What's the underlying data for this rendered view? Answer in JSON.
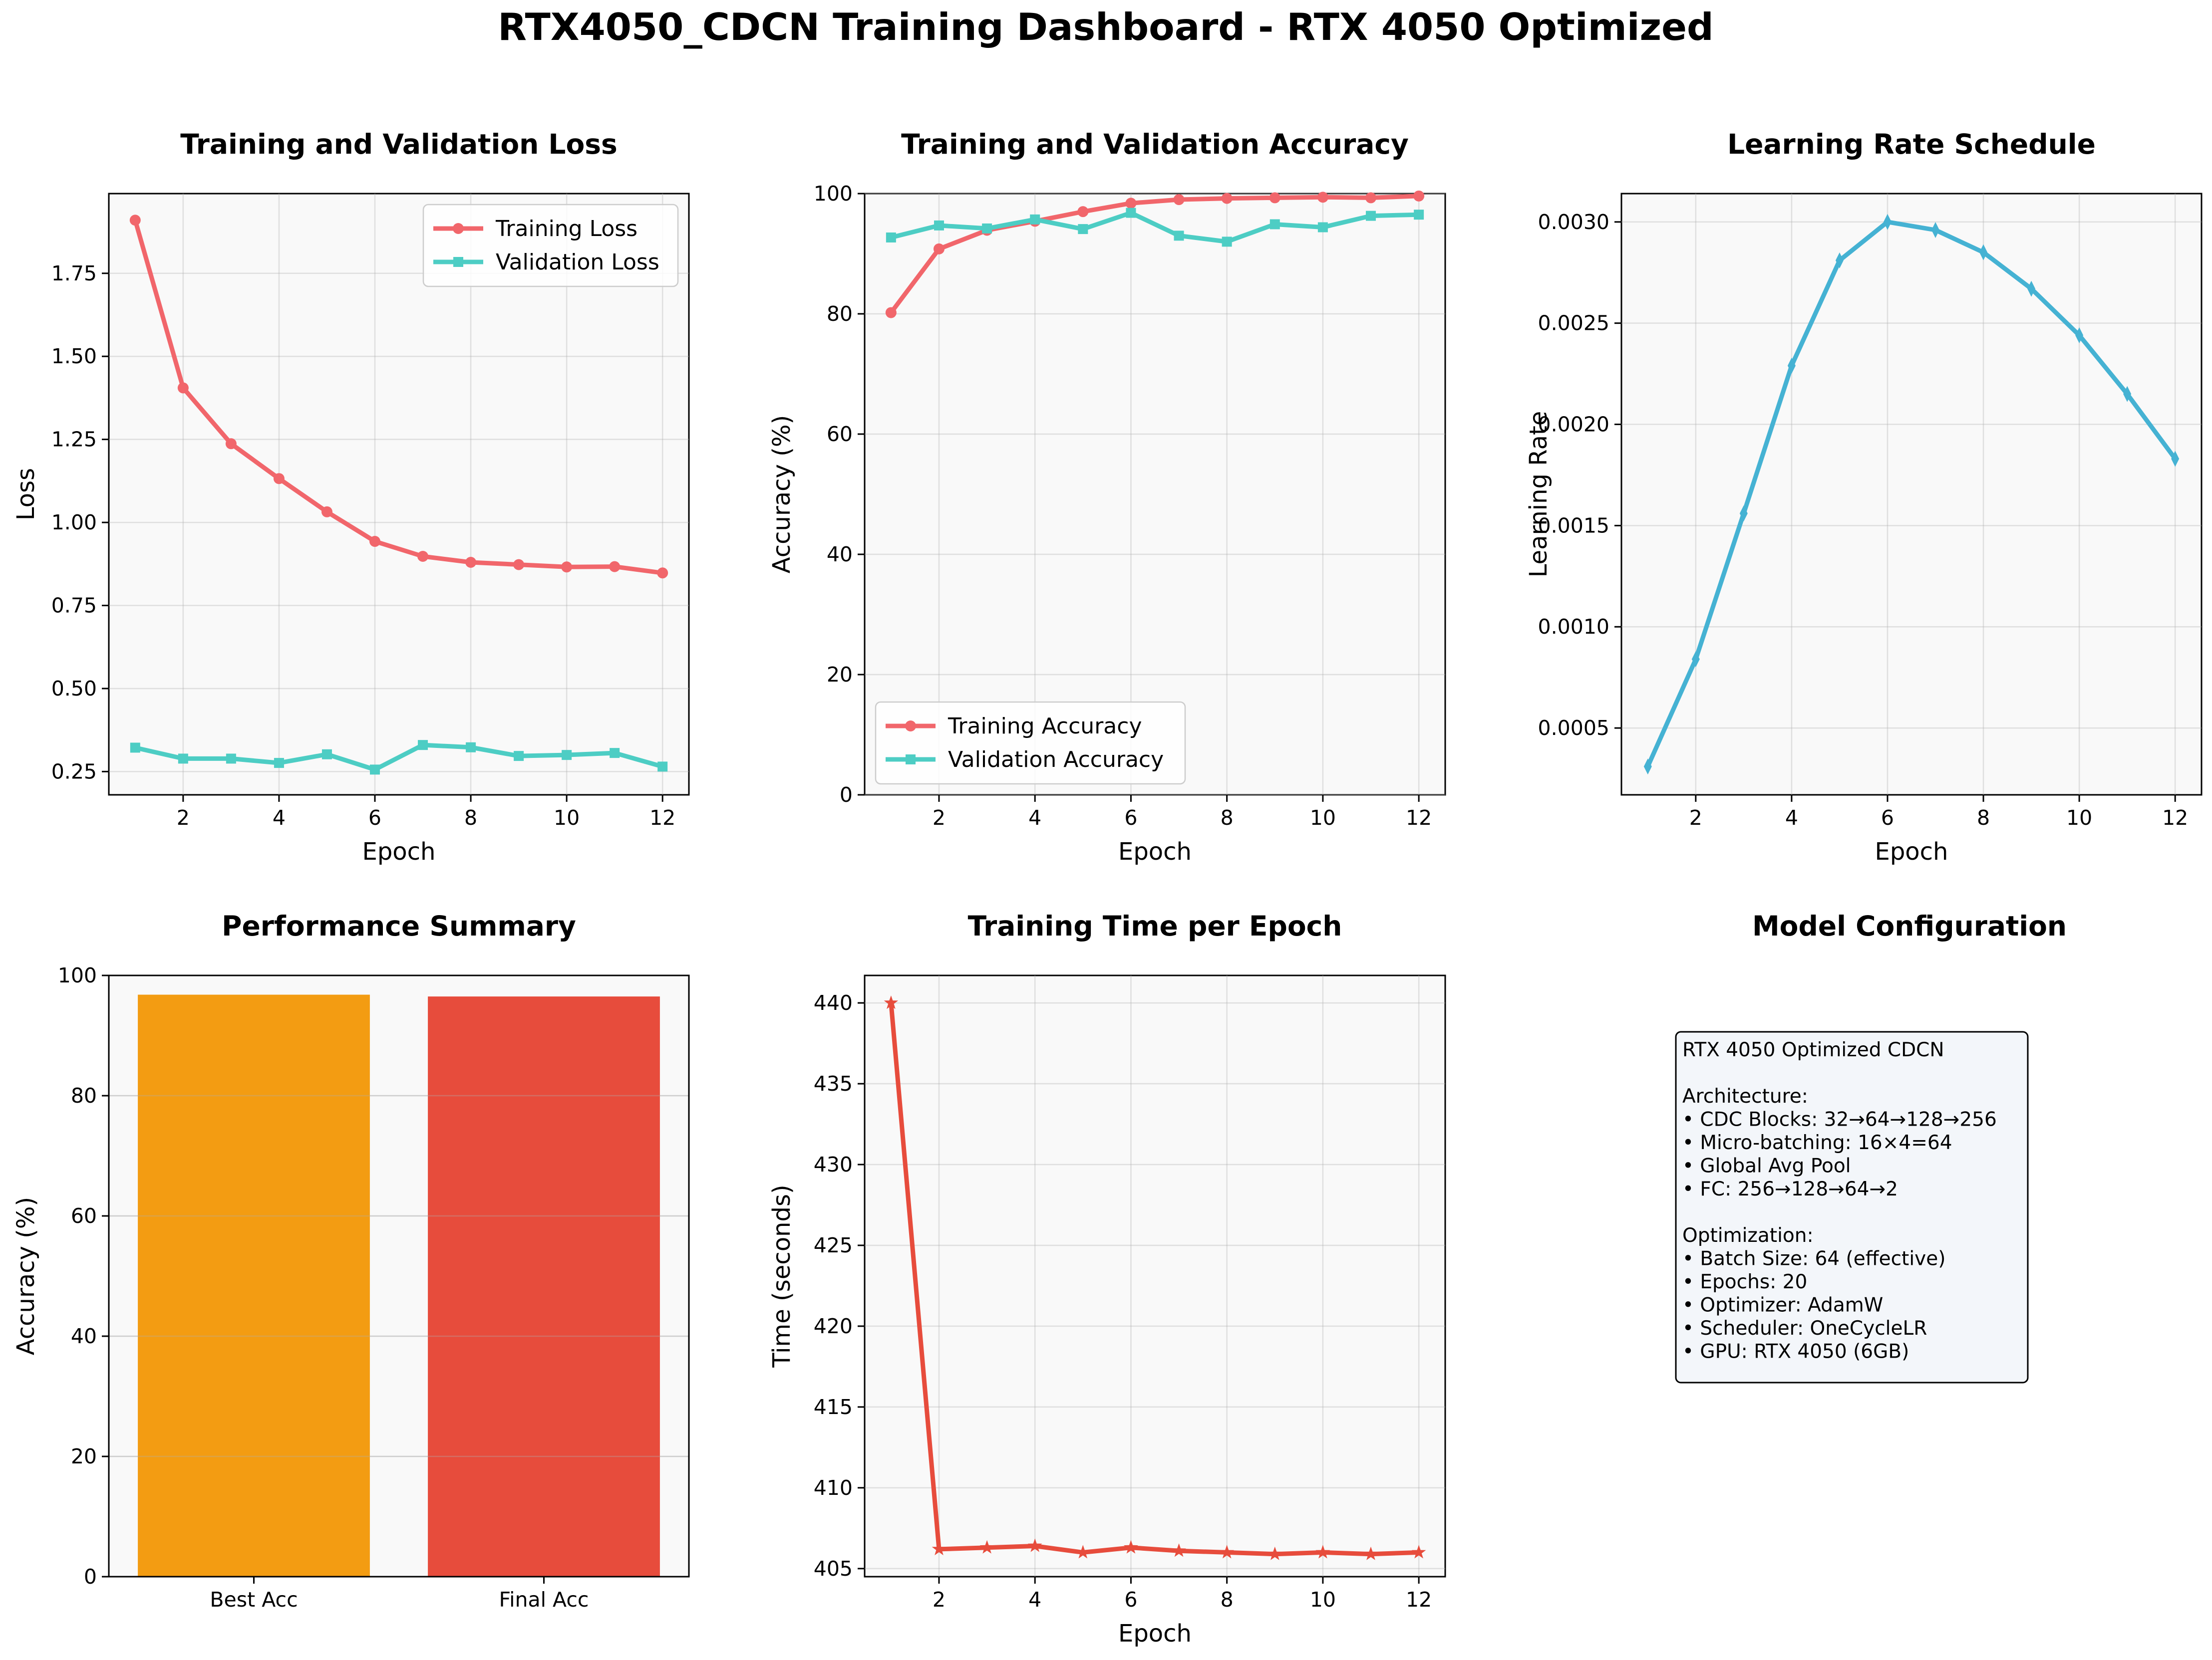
{
  "dashboard": {
    "title": "RTX4050_CDCN Training Dashboard - RTX 4050 Optimized"
  },
  "colors": {
    "train": "#f1666b",
    "val": "#4dcdc4",
    "lr": "#45b2d3",
    "time": "#e74c3c",
    "best_bar": "#f39c12",
    "final_bar": "#e74c3c"
  },
  "chart_data": [
    {
      "id": "loss",
      "type": "line",
      "title": "Training and Validation Loss",
      "xlabel": "Epoch",
      "ylabel": "Loss",
      "xlim": [
        0.45,
        12.55
      ],
      "ylim": [
        0.18,
        1.99
      ],
      "xticks": [
        2,
        4,
        6,
        8,
        10,
        12
      ],
      "yticks": [
        0.25,
        0.5,
        0.75,
        1.0,
        1.25,
        1.5,
        1.75
      ],
      "ytick_decimals": 2,
      "grid": true,
      "legend": "upper-right",
      "x": [
        1,
        2,
        3,
        4,
        5,
        6,
        7,
        8,
        9,
        10,
        11,
        12
      ],
      "series": [
        {
          "name": "Training Loss",
          "color_key": "train",
          "marker": "circle",
          "values": [
            1.91,
            1.405,
            1.237,
            1.132,
            1.032,
            0.943,
            0.898,
            0.88,
            0.873,
            0.866,
            0.867,
            0.848
          ]
        },
        {
          "name": "Validation Loss",
          "color_key": "val",
          "marker": "square",
          "values": [
            0.322,
            0.289,
            0.289,
            0.276,
            0.302,
            0.256,
            0.33,
            0.323,
            0.297,
            0.3,
            0.306,
            0.265
          ]
        }
      ]
    },
    {
      "id": "accuracy",
      "type": "line",
      "title": "Training and Validation Accuracy",
      "xlabel": "Epoch",
      "ylabel": "Accuracy (%)",
      "xlim": [
        0.45,
        12.55
      ],
      "ylim": [
        0,
        100
      ],
      "xticks": [
        2,
        4,
        6,
        8,
        10,
        12
      ],
      "yticks": [
        0,
        20,
        40,
        60,
        80,
        100
      ],
      "ytick_decimals": 0,
      "grid": true,
      "legend": "lower-left",
      "x": [
        1,
        2,
        3,
        4,
        5,
        6,
        7,
        8,
        9,
        10,
        11,
        12
      ],
      "series": [
        {
          "name": "Training Accuracy",
          "color_key": "train",
          "marker": "circle",
          "values": [
            80.2,
            90.8,
            93.9,
            95.4,
            97.0,
            98.4,
            99.0,
            99.2,
            99.3,
            99.4,
            99.3,
            99.6
          ]
        },
        {
          "name": "Validation Accuracy",
          "color_key": "val",
          "marker": "square",
          "values": [
            92.7,
            94.7,
            94.2,
            95.7,
            94.1,
            96.8,
            93.0,
            92.0,
            94.9,
            94.4,
            96.3,
            96.5
          ]
        }
      ]
    },
    {
      "id": "lr",
      "type": "line",
      "title": "Learning Rate Schedule",
      "xlabel": "Epoch",
      "ylabel": "Learning Rate",
      "xlim": [
        0.45,
        12.55
      ],
      "ylim": [
        0.00017,
        0.00314
      ],
      "xticks": [
        2,
        4,
        6,
        8,
        10,
        12
      ],
      "yticks": [
        0.0005,
        0.001,
        0.0015,
        0.002,
        0.0025,
        0.003
      ],
      "ytick_decimals": 4,
      "grid": true,
      "x": [
        1,
        2,
        3,
        4,
        5,
        6,
        7,
        8,
        9,
        10,
        11,
        12
      ],
      "series": [
        {
          "color_key": "lr",
          "marker": "diamond",
          "values": [
            0.00031,
            0.00084,
            0.00156,
            0.00229,
            0.00281,
            0.003,
            0.00296,
            0.00285,
            0.00267,
            0.00244,
            0.00215,
            0.00183
          ]
        }
      ]
    },
    {
      "id": "performance",
      "type": "bar",
      "title": "Performance Summary",
      "ylabel": "Accuracy (%)",
      "ylim": [
        0,
        100
      ],
      "yticks": [
        0,
        20,
        40,
        60,
        80,
        100
      ],
      "ytick_decimals": 0,
      "grid": true,
      "categories": [
        "Best Acc",
        "Final Acc"
      ],
      "values": [
        96.8,
        96.5
      ],
      "bar_color_keys": [
        "best_bar",
        "final_bar"
      ]
    },
    {
      "id": "time",
      "type": "line",
      "title": "Training Time per Epoch",
      "xlabel": "Epoch",
      "ylabel": "Time (seconds)",
      "xlim": [
        0.45,
        12.55
      ],
      "ylim": [
        404.5,
        441.7
      ],
      "xticks": [
        2,
        4,
        6,
        8,
        10,
        12
      ],
      "yticks": [
        405,
        410,
        415,
        420,
        425,
        430,
        435,
        440
      ],
      "ytick_decimals": 0,
      "grid": true,
      "x": [
        1,
        2,
        3,
        4,
        5,
        6,
        7,
        8,
        9,
        10,
        11,
        12
      ],
      "series": [
        {
          "color_key": "time",
          "marker": "star",
          "values": [
            440.0,
            406.2,
            406.3,
            406.4,
            406.0,
            406.3,
            406.1,
            406.0,
            405.9,
            406.0,
            405.9,
            406.0
          ]
        }
      ]
    }
  ],
  "config_panel": {
    "title": "Model Configuration",
    "lines": [
      "RTX 4050 Optimized CDCN",
      "",
      "Architecture:",
      "• CDC Blocks: 32→64→128→256",
      "• Micro-batching: 16×4=64",
      "• Global Avg Pool",
      "• FC: 256→128→64→2",
      "",
      "Optimization:",
      "• Batch Size: 64 (effective)",
      "• Epochs: 20",
      "• Optimizer: AdamW",
      "• Scheduler: OneCycleLR",
      "• GPU: RTX 4050 (6GB)"
    ]
  }
}
